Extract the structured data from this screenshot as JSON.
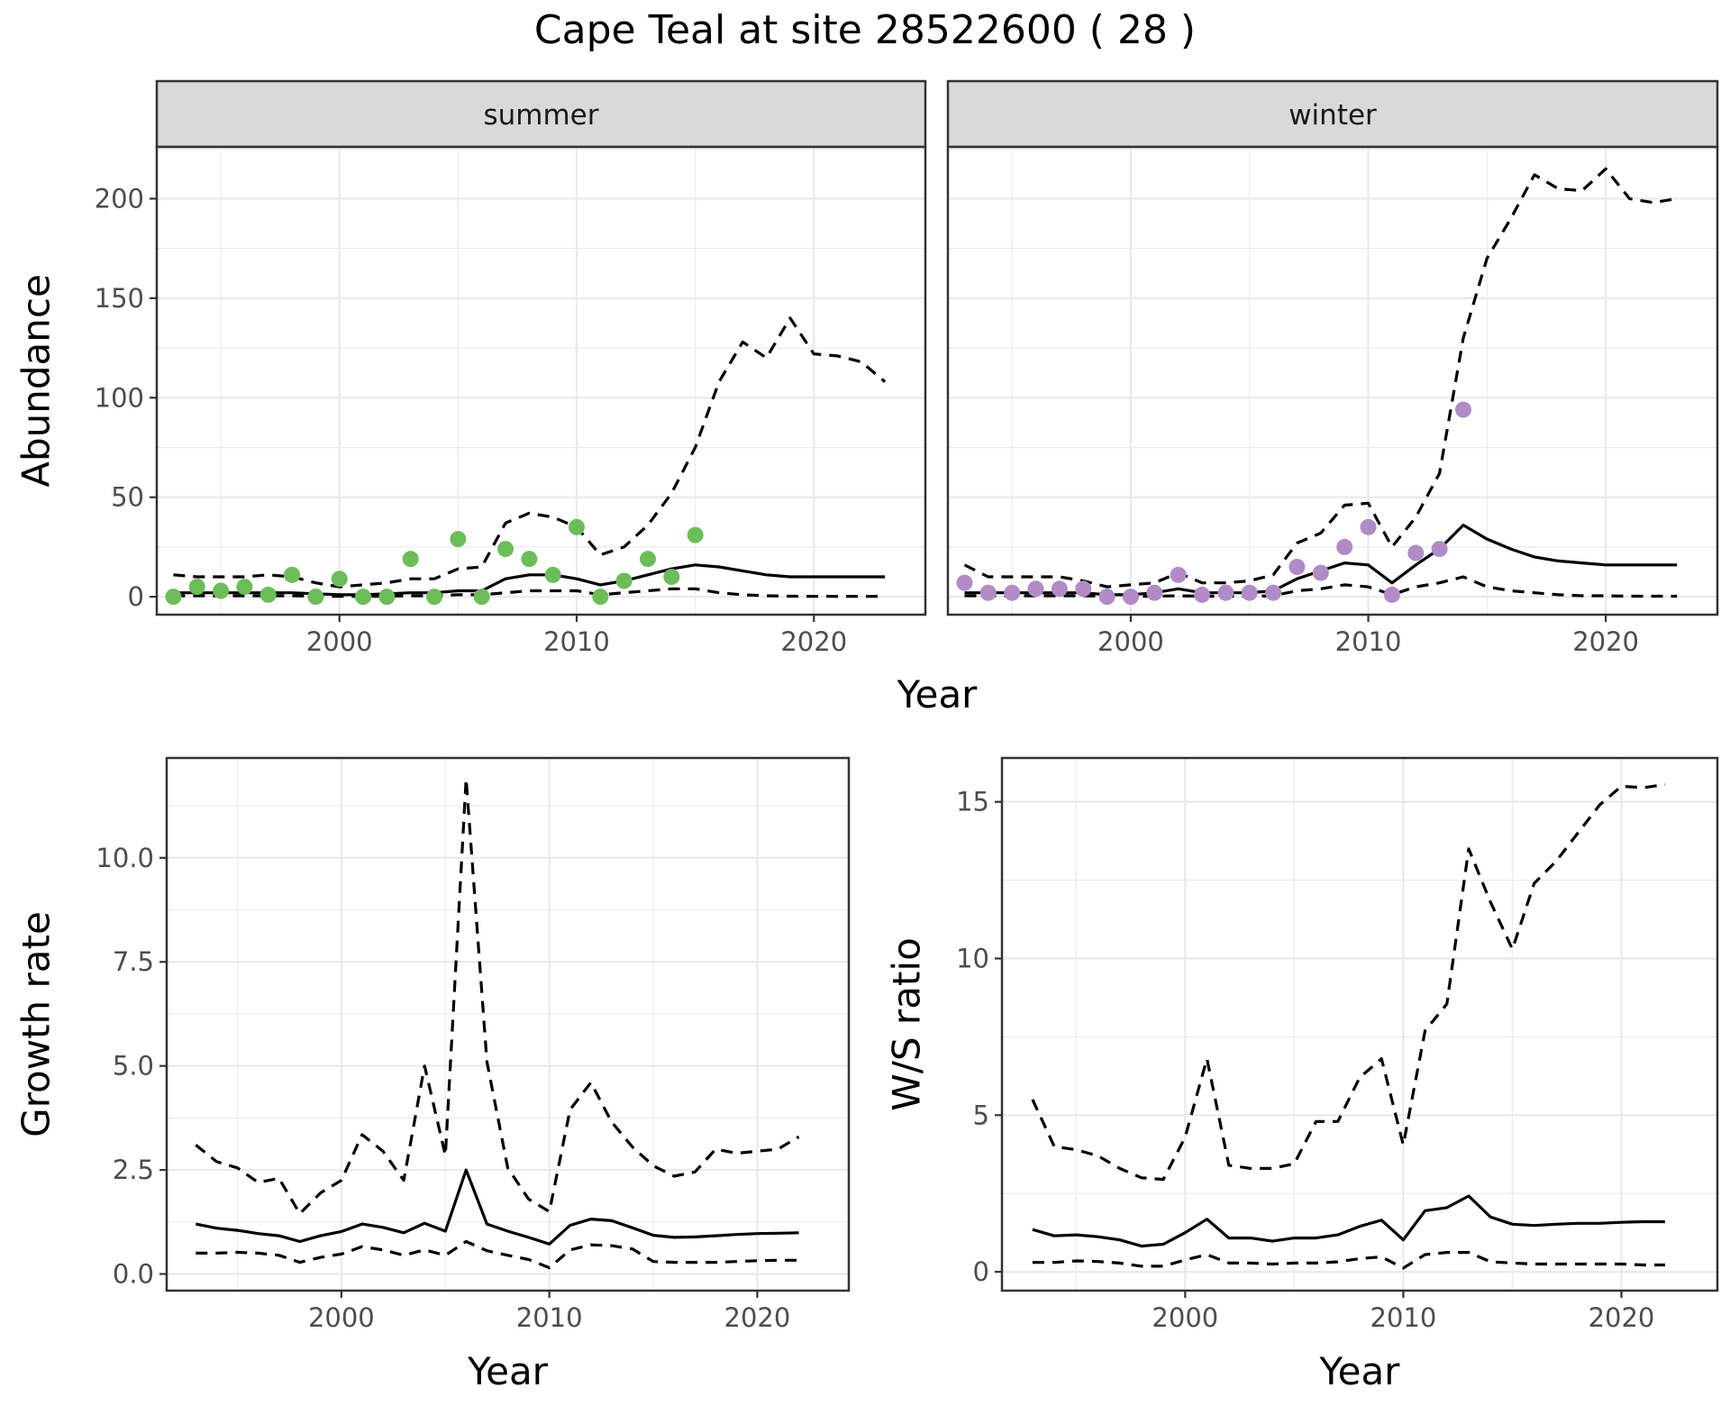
{
  "title": "Cape Teal at site 28522600 ( 28 )",
  "colors": {
    "summer_points": "#6cbd5a",
    "winter_points": "#b18bc6",
    "lines": "#000000",
    "strip_fill": "#d9d9d9",
    "grid": "#ebebeb",
    "panel_border": "#333333"
  },
  "chart_data": [
    {
      "type": "line",
      "panel": "summer",
      "xlabel": "Year",
      "ylabel": "Abundance",
      "xlim": [
        1992.3,
        2024.7
      ],
      "ylim": [
        -9,
        226
      ],
      "xticks": [
        2000,
        2010,
        2020
      ],
      "yticks": [
        0,
        50,
        100,
        150,
        200
      ],
      "grid": true,
      "x": [
        1993,
        1994,
        1995,
        1996,
        1997,
        1998,
        1999,
        2000,
        2001,
        2002,
        2003,
        2004,
        2005,
        2006,
        2007,
        2008,
        2009,
        2010,
        2011,
        2012,
        2013,
        2014,
        2015,
        2016,
        2017,
        2018,
        2019,
        2020,
        2021,
        2022,
        2023
      ],
      "series": [
        {
          "style": "solid",
          "values": [
            2,
            2,
            2,
            2,
            2,
            2,
            1.5,
            1,
            1,
            1.5,
            2,
            2,
            3,
            3,
            9,
            11,
            11,
            9,
            6,
            8,
            11,
            14,
            16,
            15,
            13,
            11,
            10,
            10,
            10,
            10,
            10
          ]
        },
        {
          "style": "dashed",
          "values": [
            11,
            10,
            10,
            10,
            11,
            10,
            7,
            5,
            6,
            7,
            9,
            9,
            14,
            15,
            37,
            42,
            40,
            35,
            21,
            25,
            36,
            52,
            75,
            108,
            128,
            120,
            140,
            122,
            121,
            118,
            108
          ]
        },
        {
          "style": "dashed",
          "values": [
            0.5,
            0.5,
            0.5,
            0.5,
            0.5,
            0.5,
            0.3,
            0.2,
            0.2,
            0.3,
            0.5,
            0.5,
            1,
            1,
            2,
            3,
            3,
            3,
            1,
            2,
            3,
            4,
            4,
            2,
            1,
            0.5,
            0.3,
            0.2,
            0.2,
            0.2,
            0.2
          ]
        }
      ],
      "points": {
        "x": [
          1993,
          1994,
          1995,
          1996,
          1997,
          1998,
          1999,
          2000,
          2001,
          2002,
          2003,
          2004,
          2005,
          2006,
          2007,
          2008,
          2009,
          2010,
          2011,
          2012,
          2013,
          2014,
          2015
        ],
        "y": [
          0,
          5,
          3,
          5,
          1,
          11,
          0,
          9,
          0,
          0,
          19,
          0,
          29,
          0,
          24,
          19,
          11,
          35,
          0,
          8,
          19,
          10,
          31
        ]
      }
    },
    {
      "type": "line",
      "panel": "winter",
      "xlabel": "Year",
      "ylabel": "Abundance",
      "xlim": [
        1992.3,
        2024.7
      ],
      "ylim": [
        -9,
        226
      ],
      "xticks": [
        2000,
        2010,
        2020
      ],
      "yticks": [
        0,
        50,
        100,
        150,
        200
      ],
      "grid": true,
      "x": [
        1993,
        1994,
        1995,
        1996,
        1997,
        1998,
        1999,
        2000,
        2001,
        2002,
        2003,
        2004,
        2005,
        2006,
        2007,
        2008,
        2009,
        2010,
        2011,
        2012,
        2013,
        2014,
        2015,
        2016,
        2017,
        2018,
        2019,
        2020,
        2021,
        2022,
        2023
      ],
      "series": [
        {
          "style": "solid",
          "values": [
            2,
            2,
            2,
            2,
            2,
            2,
            1,
            1,
            2,
            4,
            2,
            2,
            2,
            3,
            9,
            13,
            17,
            16,
            7,
            16,
            24,
            36,
            29,
            24,
            20,
            18,
            17,
            16,
            16,
            16,
            16
          ]
        },
        {
          "style": "dashed",
          "values": [
            16,
            10,
            10,
            10,
            10,
            8,
            5,
            6,
            7,
            12,
            7,
            7,
            8,
            11,
            27,
            32,
            46,
            47,
            25,
            40,
            62,
            130,
            170,
            190,
            212,
            205,
            204,
            215,
            200,
            198,
            200
          ]
        },
        {
          "style": "dashed",
          "values": [
            0.5,
            0.5,
            0.5,
            0.5,
            0.5,
            0.5,
            0.3,
            0.2,
            0.3,
            0.5,
            0.3,
            0.3,
            0.3,
            0.5,
            3,
            4,
            6,
            5,
            1,
            5,
            7,
            10,
            5,
            3,
            2,
            1,
            0.5,
            0.5,
            0.3,
            0.3,
            0.3
          ]
        }
      ],
      "points": {
        "x": [
          1993,
          1994,
          1995,
          1996,
          1997,
          1998,
          1999,
          2000,
          2001,
          2002,
          2003,
          2004,
          2005,
          2006,
          2007,
          2008,
          2009,
          2010,
          2011,
          2012,
          2013,
          2014
        ],
        "y": [
          7,
          2,
          2,
          4,
          4,
          4,
          0,
          0,
          2,
          11,
          1,
          2,
          2,
          2,
          15,
          12,
          25,
          35,
          1,
          22,
          24,
          94
        ]
      }
    },
    {
      "type": "line",
      "panel": "growth",
      "xlabel": "Year",
      "ylabel": "Growth rate",
      "xlim": [
        1991.6,
        2024.4
      ],
      "ylim": [
        -0.4,
        12.4
      ],
      "xticks": [
        2000,
        2010,
        2020
      ],
      "yticks": [
        0.0,
        2.5,
        5.0,
        7.5,
        10.0
      ],
      "ytick_labels": [
        "0.0",
        "2.5",
        "5.0",
        "7.5",
        "10.0"
      ],
      "grid": true,
      "x": [
        1993,
        1994,
        1995,
        1996,
        1997,
        1998,
        1999,
        2000,
        2001,
        2002,
        2003,
        2004,
        2005,
        2006,
        2007,
        2008,
        2009,
        2010,
        2011,
        2012,
        2013,
        2014,
        2015,
        2016,
        2017,
        2018,
        2019,
        2020,
        2021,
        2022
      ],
      "series": [
        {
          "style": "solid",
          "values": [
            1.2,
            1.1,
            1.05,
            0.97,
            0.92,
            0.78,
            0.92,
            1.02,
            1.2,
            1.12,
            0.99,
            1.22,
            1.03,
            2.5,
            1.2,
            1.03,
            0.88,
            0.72,
            1.17,
            1.32,
            1.28,
            1.11,
            0.93,
            0.88,
            0.89,
            0.92,
            0.95,
            0.97,
            0.98,
            0.99
          ]
        },
        {
          "style": "dashed",
          "values": [
            3.1,
            2.7,
            2.55,
            2.2,
            2.3,
            1.45,
            1.95,
            2.25,
            3.35,
            2.95,
            2.25,
            5.0,
            2.85,
            11.9,
            5.1,
            2.55,
            1.8,
            1.5,
            3.95,
            4.6,
            3.65,
            3.05,
            2.6,
            2.35,
            2.45,
            3.0,
            2.9,
            2.95,
            3.0,
            3.3
          ]
        },
        {
          "style": "dashed",
          "values": [
            0.5,
            0.5,
            0.52,
            0.5,
            0.45,
            0.28,
            0.4,
            0.48,
            0.66,
            0.58,
            0.45,
            0.58,
            0.45,
            0.78,
            0.56,
            0.45,
            0.35,
            0.15,
            0.58,
            0.7,
            0.68,
            0.6,
            0.3,
            0.28,
            0.28,
            0.28,
            0.3,
            0.32,
            0.33,
            0.33
          ]
        }
      ]
    },
    {
      "type": "line",
      "panel": "ws_ratio",
      "xlabel": "Year",
      "ylabel": "W/S ratio",
      "xlim": [
        1991.6,
        2024.4
      ],
      "ylim": [
        -0.6,
        16.4
      ],
      "xticks": [
        2000,
        2010,
        2020
      ],
      "yticks": [
        0,
        5,
        10,
        15
      ],
      "grid": true,
      "x": [
        1993,
        1994,
        1995,
        1996,
        1997,
        1998,
        1999,
        2000,
        2001,
        2002,
        2003,
        2004,
        2005,
        2006,
        2007,
        2008,
        2009,
        2010,
        2011,
        2012,
        2013,
        2014,
        2015,
        2016,
        2017,
        2018,
        2019,
        2020,
        2021,
        2022
      ],
      "series": [
        {
          "style": "solid",
          "values": [
            1.35,
            1.15,
            1.18,
            1.12,
            1.02,
            0.82,
            0.88,
            1.25,
            1.68,
            1.08,
            1.08,
            0.98,
            1.08,
            1.08,
            1.18,
            1.45,
            1.65,
            1.02,
            1.95,
            2.05,
            2.42,
            1.75,
            1.52,
            1.48,
            1.52,
            1.55,
            1.55,
            1.58,
            1.6,
            1.6
          ]
        },
        {
          "style": "dashed",
          "values": [
            5.5,
            4.0,
            3.9,
            3.7,
            3.3,
            3.0,
            2.95,
            4.3,
            6.8,
            3.4,
            3.3,
            3.3,
            3.45,
            4.8,
            4.8,
            6.2,
            6.8,
            4.05,
            7.7,
            8.55,
            13.5,
            11.8,
            10.3,
            12.4,
            13.1,
            14.0,
            14.9,
            15.5,
            15.45,
            15.55
          ]
        },
        {
          "style": "dashed",
          "values": [
            0.3,
            0.3,
            0.35,
            0.33,
            0.28,
            0.18,
            0.18,
            0.38,
            0.55,
            0.28,
            0.28,
            0.25,
            0.28,
            0.28,
            0.32,
            0.42,
            0.48,
            0.12,
            0.55,
            0.62,
            0.62,
            0.32,
            0.28,
            0.25,
            0.25,
            0.25,
            0.25,
            0.25,
            0.22,
            0.22
          ]
        }
      ]
    }
  ]
}
